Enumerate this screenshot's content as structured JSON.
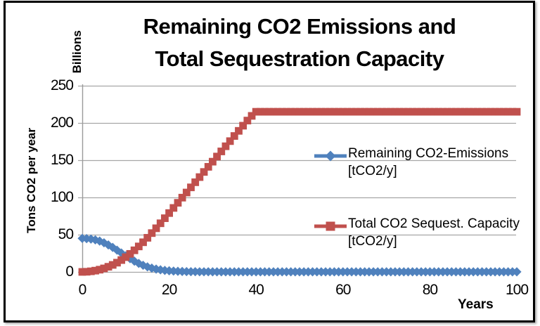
{
  "title": {
    "line1": "Remaining CO2 Emissions and",
    "line2": "Total Sequestration Capacity"
  },
  "axes": {
    "y_unit_label": "Billions",
    "y_title": "Tons CO2 per year",
    "x_title": "Years",
    "y_ticks": [
      0,
      50,
      100,
      150,
      200,
      250
    ],
    "x_ticks": [
      0,
      20,
      40,
      60,
      80,
      100
    ]
  },
  "colors": {
    "series_blue": "#4F81BD",
    "series_red": "#C0504D",
    "gridline": "#A6A6A6",
    "axis_line": "#9B9B9B",
    "frame_border": "#000000",
    "background": "#FFFFFF"
  },
  "legend": {
    "items": [
      {
        "label_line1": "Remaining CO2-Emissions",
        "label_line2": "[tCO2/y]",
        "color": "#4F81BD",
        "marker": "diamond"
      },
      {
        "label_line1": "Total CO2 Sequest. Capacity",
        "label_line2": "[tCO2/y]",
        "color": "#C0504D",
        "marker": "square"
      }
    ]
  },
  "chart_data": {
    "type": "line",
    "title": "Remaining CO2 Emissions and Total Sequestration Capacity",
    "xlabel": "Years",
    "ylabel": "Tons CO2 per year (Billions)",
    "xlim": [
      0,
      100
    ],
    "ylim": [
      0,
      250
    ],
    "x_ticks": [
      0,
      20,
      40,
      60,
      80,
      100
    ],
    "y_ticks": [
      0,
      50,
      100,
      150,
      200,
      250
    ],
    "grid": "horizontal",
    "legend_position": "inside-right",
    "x": [
      0,
      1,
      2,
      3,
      4,
      5,
      6,
      7,
      8,
      9,
      10,
      11,
      12,
      13,
      14,
      15,
      16,
      17,
      18,
      19,
      20,
      21,
      22,
      23,
      24,
      25,
      26,
      27,
      28,
      29,
      30,
      31,
      32,
      33,
      34,
      35,
      36,
      37,
      38,
      39,
      40,
      41,
      42,
      43,
      44,
      45,
      46,
      47,
      48,
      49,
      50,
      51,
      52,
      53,
      54,
      55,
      56,
      57,
      58,
      59,
      60,
      61,
      62,
      63,
      64,
      65,
      66,
      67,
      68,
      69,
      70,
      71,
      72,
      73,
      74,
      75,
      76,
      77,
      78,
      79,
      80,
      81,
      82,
      83,
      84,
      85,
      86,
      87,
      88,
      89,
      90,
      91,
      92,
      93,
      94,
      95,
      96,
      97,
      98,
      99,
      100
    ],
    "series": [
      {
        "name": "Remaining CO2-Emissions [tCO2/y]",
        "color": "#4F81BD",
        "marker": "diamond",
        "values": [
          45,
          44.7,
          44.1,
          43,
          41.4,
          39.1,
          36.2,
          32.9,
          29.2,
          25.4,
          21.5,
          17.8,
          14.4,
          11.4,
          8.9,
          6.8,
          5.1,
          3.8,
          2.8,
          2,
          1.5,
          1.1,
          0.8,
          0.6,
          0.4,
          0.3,
          0.3,
          0.2,
          0.2,
          0.2,
          0.1,
          0.1,
          0.1,
          0.1,
          0.1,
          0.1,
          0.1,
          0.1,
          0.1,
          0.1,
          0.1,
          0.1,
          0.1,
          0.1,
          0.1,
          0.1,
          0.1,
          0.1,
          0.1,
          0.1,
          0.1,
          0.1,
          0.1,
          0.1,
          0.1,
          0.1,
          0.1,
          0.1,
          0.1,
          0.1,
          0.1,
          0.1,
          0.1,
          0.1,
          0.1,
          0.1,
          0.1,
          0.1,
          0.1,
          0.1,
          0.1,
          0.1,
          0.1,
          0.1,
          0.1,
          0.1,
          0.1,
          0.1,
          0.1,
          0.1,
          0.1,
          0.1,
          0.1,
          0.1,
          0.1,
          0.1,
          0.1,
          0.1,
          0.1,
          0.1,
          0.1,
          0.1,
          0.1,
          0.1,
          0.1,
          0.1,
          0.1,
          0.1,
          0.1,
          0.1,
          0.1
        ]
      },
      {
        "name": "Total CO2 Sequest. Capacity [tCO2/y]",
        "color": "#C0504D",
        "marker": "square",
        "values": [
          0,
          0.2,
          0.8,
          1.7,
          3,
          4.7,
          6.9,
          9.4,
          12.4,
          15.9,
          19.8,
          24.2,
          29,
          34.2,
          39.8,
          45.8,
          52.1,
          58.6,
          65.3,
          72.1,
          79,
          85.9,
          92.8,
          99.7,
          106.6,
          113.5,
          120.4,
          127.3,
          134.2,
          141.1,
          148,
          154.9,
          161.8,
          168.7,
          175.6,
          182.5,
          189.4,
          196.3,
          203.2,
          209.5,
          215,
          215,
          215,
          215,
          215,
          215,
          215,
          215,
          215,
          215,
          215,
          215,
          215,
          215,
          215,
          215,
          215,
          215,
          215,
          215,
          215,
          215,
          215,
          215,
          215,
          215,
          215,
          215,
          215,
          215,
          215,
          215,
          215,
          215,
          215,
          215,
          215,
          215,
          215,
          215,
          215,
          215,
          215,
          215,
          215,
          215,
          215,
          215,
          215,
          215,
          215,
          215,
          215,
          215,
          215,
          215,
          215,
          215,
          215,
          215,
          215
        ]
      }
    ]
  }
}
